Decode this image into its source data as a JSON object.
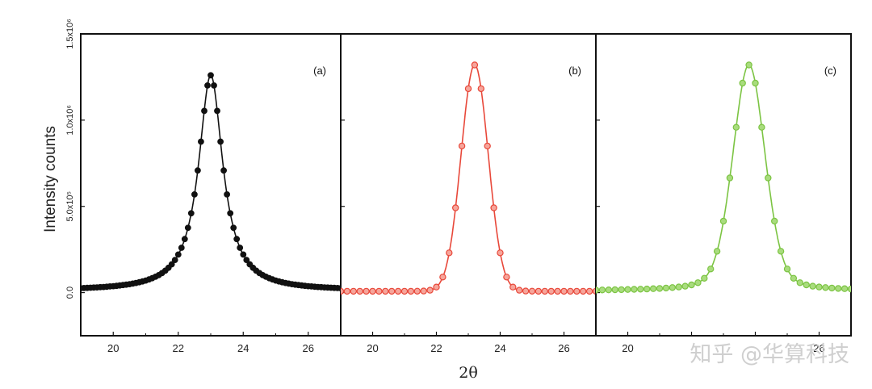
{
  "chart_data": {
    "type": "scatter",
    "xlabel": "2θ",
    "ylabel": "Intensity counts",
    "ylim": [
      -250000,
      1500000
    ],
    "yticks": [
      {
        "value": 0,
        "label": "0.0"
      },
      {
        "value": 500000,
        "label": "5.0x10⁵"
      },
      {
        "value": 1000000,
        "label": "1.0x10⁶"
      },
      {
        "value": 1500000,
        "label": "1.5x10⁶"
      }
    ],
    "panels": [
      {
        "tag": "(a)",
        "color": "#111111",
        "xlim": [
          19,
          27
        ],
        "xticks": [
          "20",
          "22",
          "24",
          "26"
        ],
        "peak": {
          "center": 23.0,
          "height": 1260000,
          "fwhm": 0.9,
          "shape": "lorentzian",
          "baseline": 10000
        },
        "x_start": 19.0,
        "x_step": 0.1,
        "n_points": 81
      },
      {
        "tag": "(b)",
        "color": "#e8483a",
        "xlim": [
          19,
          27
        ],
        "xticks": [
          "20",
          "22",
          "24",
          "26"
        ],
        "peak": {
          "center": 23.2,
          "height": 1320000,
          "fwhm": 1.0,
          "shape": "gaussian",
          "baseline": 8000
        },
        "x_start": 19.0,
        "x_step": 0.2,
        "n_points": 41
      },
      {
        "tag": "(c)",
        "color": "#7cc443",
        "xlim": [
          19,
          27
        ],
        "xticks": [
          "20",
          "",
          "",
          "26"
        ],
        "peak": {
          "center": 23.8,
          "height": 1320000,
          "fwhm": 1.2,
          "shape": "pseudo-voigt",
          "baseline": 10000
        },
        "x_start": 19.0,
        "x_step": 0.2,
        "n_points": 41
      }
    ]
  },
  "watermark": "知乎 @华算科技"
}
